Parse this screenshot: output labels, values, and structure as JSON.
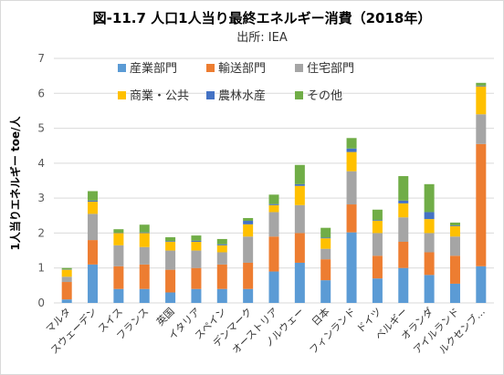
{
  "chart_data": {
    "type": "bar",
    "stacked": true,
    "title": "図-11.7 人口1人当り最終エネルギー消費（2018年）",
    "subtitle": "出所: IEA",
    "ylabel": "1人当りエネルギー toe/人",
    "xlabel": "",
    "ylim": [
      0,
      7
    ],
    "yticks": [
      0,
      1,
      2,
      3,
      4,
      5,
      6,
      7
    ],
    "grid": true,
    "legend_position": "top",
    "categories": [
      "マルタ",
      "スウェーデン",
      "スイス",
      "フランス",
      "英国",
      "イタリア",
      "スペイン",
      "デンマーク",
      "オーストリア",
      "ノルウェー",
      "日本",
      "フィンランド",
      "ドイツ",
      "ベルギー",
      "オランダ",
      "アイルランド",
      "ルクセンブ…"
    ],
    "series": [
      {
        "name": "産業部門",
        "color": "#5b9bd5",
        "values": [
          0.1,
          1.1,
          0.4,
          0.4,
          0.3,
          0.4,
          0.4,
          0.4,
          0.9,
          1.15,
          0.65,
          2.02,
          0.7,
          1.0,
          0.8,
          0.55,
          1.05
        ]
      },
      {
        "name": "輸送部門",
        "color": "#ed7d31",
        "values": [
          0.5,
          0.7,
          0.65,
          0.7,
          0.65,
          0.6,
          0.7,
          0.75,
          1.0,
          0.85,
          0.6,
          0.8,
          0.65,
          0.75,
          0.65,
          0.8,
          3.5
        ]
      },
      {
        "name": "住宅部門",
        "color": "#a5a5a5",
        "values": [
          0.15,
          0.75,
          0.6,
          0.5,
          0.55,
          0.5,
          0.35,
          0.75,
          0.7,
          0.8,
          0.3,
          0.95,
          0.65,
          0.7,
          0.55,
          0.55,
          0.85
        ]
      },
      {
        "name": "商業・公共",
        "color": "#ffc000",
        "values": [
          0.2,
          0.35,
          0.35,
          0.4,
          0.25,
          0.25,
          0.2,
          0.35,
          0.2,
          0.55,
          0.3,
          0.55,
          0.35,
          0.4,
          0.4,
          0.3,
          0.8
        ]
      },
      {
        "name": "農林水産",
        "color": "#4472c4",
        "values": [
          0.01,
          0.03,
          0.01,
          0.02,
          0.02,
          0.03,
          0.03,
          0.1,
          0.03,
          0.05,
          0.02,
          0.1,
          0.02,
          0.08,
          0.2,
          0.02,
          0.02
        ]
      },
      {
        "name": "その他",
        "color": "#70ad47",
        "values": [
          0.04,
          0.27,
          0.1,
          0.22,
          0.11,
          0.15,
          0.15,
          0.08,
          0.27,
          0.55,
          0.28,
          0.3,
          0.3,
          0.7,
          0.8,
          0.08,
          0.08
        ]
      }
    ]
  }
}
